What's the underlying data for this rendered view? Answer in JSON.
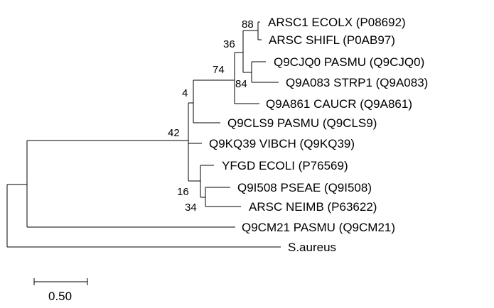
{
  "leaves": [
    {
      "id": "arsc1",
      "label": "ARSC1 ECOLX (P08692)"
    },
    {
      "id": "arsc_shifl",
      "label": "ARSC SHIFL (P0AB97)"
    },
    {
      "id": "q9cjq0",
      "label": "Q9CJQ0 PASMU (Q9CJQ0)"
    },
    {
      "id": "q9a083",
      "label": "Q9A083 STRP1 (Q9A083)"
    },
    {
      "id": "q9a861",
      "label": "Q9A861 CAUCR (Q9A861)"
    },
    {
      "id": "q9cls9",
      "label": "Q9CLS9 PASMU (Q9CLS9)"
    },
    {
      "id": "q9kq39",
      "label": "Q9KQ39 VIBCH (Q9KQ39)"
    },
    {
      "id": "yfgd",
      "label": "YFGD ECOLI (P76569)"
    },
    {
      "id": "q9i508",
      "label": "Q9I508 PSEAE (Q9I508)"
    },
    {
      "id": "arsc_neimb",
      "label": "ARSC NEIMB (P63622)"
    },
    {
      "id": "q9cm21",
      "label": "Q9CM21 PASMU (Q9CM21)"
    },
    {
      "id": "saureus",
      "label": "S.aureus"
    }
  ],
  "bootstrap": {
    "n88": "88",
    "n36": "36",
    "n84": "84",
    "n74": "74",
    "n4": "4",
    "n42": "42",
    "n16": "16",
    "n34": "34"
  },
  "scale_bar": {
    "value": 0.5,
    "label": "0.50"
  }
}
